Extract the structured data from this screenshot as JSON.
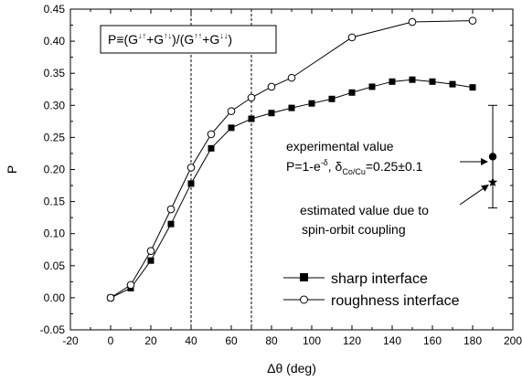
{
  "chart_data": {
    "type": "line",
    "xlabel": "Δθ (deg)",
    "ylabel": "P",
    "xlim": [
      -20,
      200
    ],
    "ylim": [
      -0.05,
      0.45
    ],
    "x_ticks": [
      -20,
      0,
      20,
      40,
      60,
      80,
      100,
      120,
      140,
      160,
      180,
      200
    ],
    "y_ticks": [
      -0.05,
      0.0,
      0.05,
      0.1,
      0.15,
      0.2,
      0.25,
      0.3,
      0.35,
      0.4,
      0.45
    ],
    "x_tick_labels": [
      "-20",
      "0",
      "20",
      "40",
      "60",
      "80",
      "100",
      "120",
      "140",
      "160",
      "180",
      "200"
    ],
    "y_tick_labels": [
      "-0.05",
      "0.00",
      "0.05",
      "0.10",
      "0.15",
      "0.20",
      "0.25",
      "0.30",
      "0.35",
      "0.40",
      "0.45"
    ],
    "grid": false,
    "legend_position": "bottom-right",
    "vertical_reference_lines": [
      40,
      70
    ],
    "formula_box": {
      "prefix": "P≡(G",
      "sup1": "↓↑",
      "mid1": "+G",
      "sup2": "↑↓",
      "mid2": ")/(G",
      "sup3": "↑↑",
      "mid3": "+G",
      "sup4": "↓↓",
      "suffix": ")"
    },
    "series": [
      {
        "name": "sharp interface",
        "marker": "filled-square",
        "x": [
          0,
          10,
          20,
          30,
          40,
          50,
          60,
          70,
          80,
          90,
          100,
          110,
          120,
          130,
          140,
          150,
          160,
          170,
          180
        ],
        "y": [
          0.0,
          0.015,
          0.058,
          0.115,
          0.178,
          0.233,
          0.265,
          0.279,
          0.288,
          0.296,
          0.303,
          0.31,
          0.32,
          0.329,
          0.337,
          0.34,
          0.337,
          0.333,
          0.328
        ]
      },
      {
        "name": "roughness interface",
        "marker": "open-circle",
        "x": [
          0,
          10,
          20,
          30,
          40,
          50,
          60,
          70,
          80,
          90,
          120,
          150,
          180
        ],
        "y": [
          0.0,
          0.02,
          0.073,
          0.138,
          0.203,
          0.255,
          0.291,
          0.312,
          0.329,
          0.343,
          0.406,
          0.43,
          0.432
        ]
      }
    ],
    "experimental": {
      "x": 190,
      "value": 0.22,
      "error_low": 0.14,
      "error_high": 0.3,
      "estimated": 0.18,
      "label_line1": "experimental value",
      "label_line2_prefix": "P=1-e",
      "label_line2_sup": "-δ",
      "label_line2_mid": ", δ",
      "label_line2_sub": "Co/Cu",
      "label_line2_suffix": "=0.25±0.1",
      "estimate_line1": "estimated value due to",
      "estimate_line2": "spin-orbit coupling"
    }
  }
}
